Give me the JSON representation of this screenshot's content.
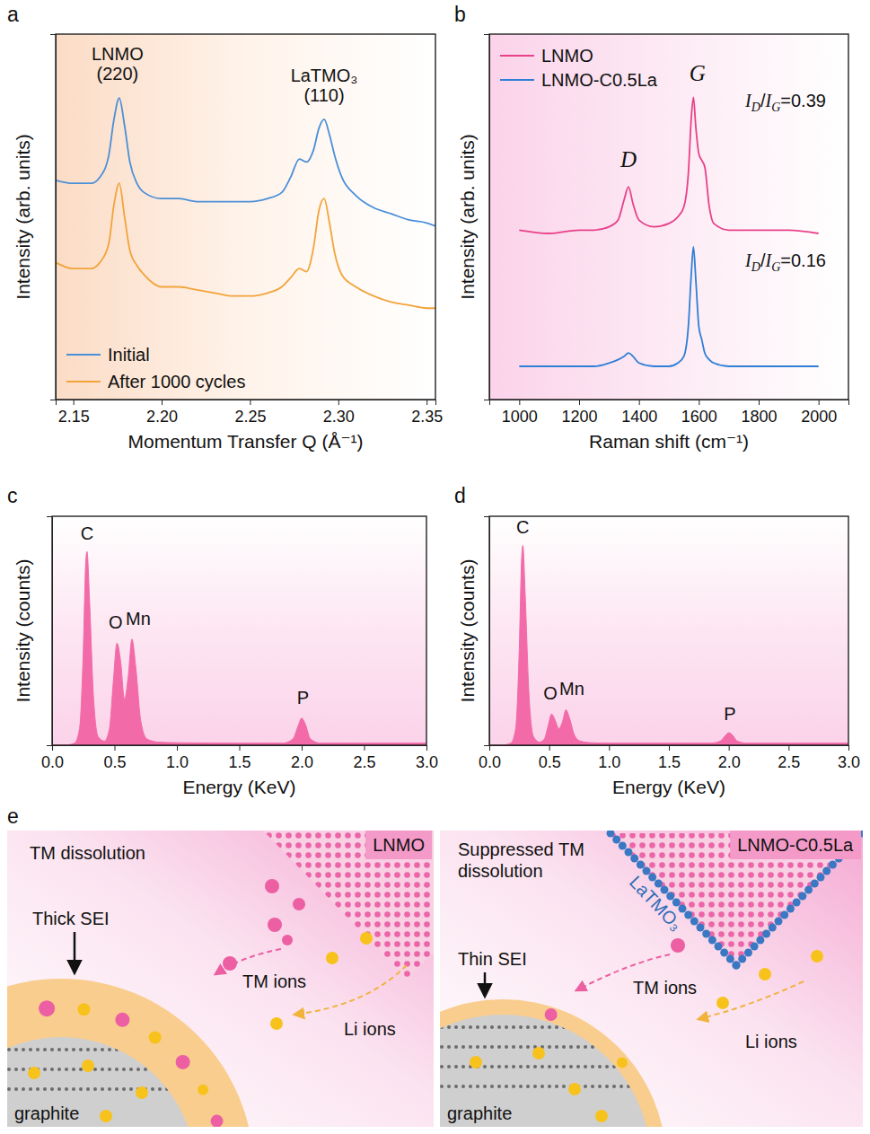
{
  "chart_data": [
    {
      "type": "line",
      "panel_label": "a",
      "x_label": "Momentum Transfer Q (Å⁻¹)",
      "y_label": "Intensity (arb. units)",
      "x": [
        2.14,
        2.15,
        2.16,
        2.165,
        2.17,
        2.173,
        2.176,
        2.179,
        2.182,
        2.186,
        2.19,
        2.2,
        2.21,
        2.22,
        2.23,
        2.24,
        2.25,
        2.26,
        2.268,
        2.273,
        2.278,
        2.282,
        2.286,
        2.289,
        2.292,
        2.295,
        2.298,
        2.302,
        2.31,
        2.32,
        2.33,
        2.34,
        2.35,
        2.355
      ],
      "series": [
        {
          "name": "Initial",
          "color": "#4a8fd8",
          "values": [
            52,
            51,
            51,
            53,
            60,
            72,
            79,
            70,
            58,
            51,
            48,
            46,
            46,
            45,
            45,
            45,
            45,
            46,
            48,
            53,
            59,
            58,
            62,
            69,
            72,
            67,
            60,
            53,
            47,
            43,
            41,
            39,
            38,
            37
          ]
        },
        {
          "name": "After 1000 cycles",
          "color": "#f2a43a",
          "values": [
            25,
            23,
            23,
            25,
            31,
            44,
            51,
            40,
            29,
            24,
            21,
            17,
            17,
            16,
            15,
            14,
            14,
            15,
            17,
            20,
            23,
            22,
            30,
            42,
            46,
            38,
            28,
            21,
            17,
            14,
            12,
            11,
            10,
            10
          ]
        }
      ],
      "xlim": [
        2.14,
        2.355
      ],
      "xticks": [
        2.15,
        {
          "value": 2.2,
          "label": "2.20"
        },
        2.25,
        {
          "value": 2.3,
          "label": "2.30"
        },
        2.35
      ],
      "ylim": [
        -20,
        100
      ],
      "yticks": [],
      "tick_labels": "x",
      "legend": "bottom-left",
      "annotations": [
        {
          "lines": [
            "LNMO",
            "(220)"
          ],
          "x": 2.175,
          "y": 85
        },
        {
          "lines": [
            "LaTMO₃",
            "(110)"
          ],
          "x": 2.292,
          "y": 78
        }
      ]
    },
    {
      "type": "line",
      "panel_label": "b",
      "x_label": "Raman shift (cm⁻¹)",
      "y_label": "Intensity (arb. units)",
      "x": [
        1000,
        1100,
        1200,
        1250,
        1300,
        1330,
        1350,
        1365,
        1380,
        1400,
        1450,
        1500,
        1530,
        1550,
        1565,
        1575,
        1582,
        1590,
        1600,
        1610,
        1620,
        1635,
        1650,
        1700,
        1800,
        1900,
        2000
      ],
      "series": [
        {
          "name": "LNMO",
          "color": "#e8418a",
          "values": [
            51,
            50,
            51,
            51,
            52,
            54,
            60,
            64,
            59,
            54,
            52,
            53,
            55,
            58,
            68,
            85,
            91,
            82,
            74,
            72,
            70,
            58,
            53,
            51,
            51,
            51,
            50
          ]
        },
        {
          "name": "LNMO-C0.5La",
          "color": "#2f7fd6",
          "values": [
            10,
            10,
            10,
            10,
            11,
            12,
            13,
            14,
            13,
            11,
            10,
            10,
            11,
            13,
            22,
            38,
            46,
            36,
            22,
            18,
            14,
            12,
            11,
            10,
            10,
            10,
            10
          ]
        }
      ],
      "xlim": [
        900,
        2100
      ],
      "xticks": [
        1000,
        1200,
        1400,
        1600,
        1800,
        2000
      ],
      "ylim": [
        0,
        110
      ],
      "yticks": [],
      "tick_labels": "x",
      "legend": "top-left",
      "annotations": [
        {
          "lines": [
            "D"
          ],
          "x": 1365,
          "y": 70
        },
        {
          "lines": [
            "G"
          ],
          "x": 1595,
          "y": 96
        },
        {
          "lines": [
            "ID/IG=0.39"
          ],
          "x": 1890,
          "y": 88
        },
        {
          "lines": [
            "ID/IG=0.16"
          ],
          "x": 1890,
          "y": 40
        }
      ]
    },
    {
      "type": "area",
      "panel_label": "c",
      "x_label": "Energy (KeV)",
      "y_label": "Intensity (counts)",
      "x": [
        0,
        0.1,
        0.18,
        0.22,
        0.25,
        0.27,
        0.28,
        0.3,
        0.33,
        0.37,
        0.42,
        0.46,
        0.49,
        0.52,
        0.55,
        0.58,
        0.61,
        0.64,
        0.67,
        0.71,
        0.76,
        0.85,
        1.0,
        1.5,
        1.85,
        1.93,
        1.97,
        2.0,
        2.03,
        2.07,
        2.15,
        2.5,
        3.0
      ],
      "series": [
        {
          "color": "#f36aa8",
          "values": [
            0,
            0,
            1,
            8,
            45,
            88,
            93,
            70,
            25,
            4,
            2,
            8,
            30,
            49,
            40,
            22,
            33,
            51,
            38,
            12,
            3,
            1.5,
            1.2,
            1,
            1,
            3,
            9,
            13,
            10,
            3,
            1,
            1,
            1
          ]
        }
      ],
      "xlim": [
        0,
        3
      ],
      "xticks": [
        {
          "value": 0,
          "label": "0.0"
        },
        0.5,
        {
          "value": 1,
          "label": "1.0"
        },
        1.5,
        {
          "value": 2,
          "label": "2.0"
        },
        2.5,
        {
          "value": 3,
          "label": "3.0"
        }
      ],
      "ylim": [
        0,
        110
      ],
      "yticks": [],
      "tick_labels": "x",
      "annotations": [
        {
          "lines": [
            "C"
          ],
          "x": 0.28,
          "y": 99
        },
        {
          "lines": [
            "O"
          ],
          "x": 0.51,
          "y": 56
        },
        {
          "lines": [
            "Mn"
          ],
          "x": 0.69,
          "y": 58
        },
        {
          "lines": [
            "P"
          ],
          "x": 2.01,
          "y": 20
        }
      ]
    },
    {
      "type": "area",
      "panel_label": "d",
      "x_label": "Energy (KeV)",
      "y_label": "Intensity (counts)",
      "x": [
        0,
        0.1,
        0.18,
        0.22,
        0.25,
        0.27,
        0.28,
        0.3,
        0.33,
        0.37,
        0.42,
        0.46,
        0.49,
        0.52,
        0.55,
        0.58,
        0.61,
        0.64,
        0.67,
        0.71,
        0.76,
        0.85,
        1.0,
        1.5,
        1.85,
        1.93,
        1.97,
        2.0,
        2.03,
        2.07,
        2.15,
        2.5,
        3.0
      ],
      "series": [
        {
          "color": "#f36aa8",
          "values": [
            0,
            0,
            1,
            8,
            46,
            90,
            96,
            72,
            26,
            4,
            1.5,
            3,
            9,
            15,
            12,
            8,
            11,
            17,
            13,
            5,
            2,
            1.2,
            1,
            1,
            1,
            2,
            4.5,
            6,
            5,
            2,
            1,
            1,
            1
          ]
        }
      ],
      "xlim": [
        0,
        3
      ],
      "xticks": [
        {
          "value": 0,
          "label": "0.0"
        },
        0.5,
        {
          "value": 1,
          "label": "1.0"
        },
        1.5,
        {
          "value": 2,
          "label": "2.0"
        },
        2.5,
        {
          "value": 3,
          "label": "3.0"
        }
      ],
      "ylim": [
        0,
        110
      ],
      "yticks": [],
      "tick_labels": "x",
      "annotations": [
        {
          "lines": [
            "C"
          ],
          "x": 0.28,
          "y": 102
        },
        {
          "lines": [
            "O"
          ],
          "x": 0.51,
          "y": 22
        },
        {
          "lines": [
            "Mn"
          ],
          "x": 0.69,
          "y": 24
        },
        {
          "lines": [
            "P"
          ],
          "x": 2.01,
          "y": 12
        }
      ]
    }
  ],
  "diagram": {
    "panel_label": "e",
    "left": {
      "corner_label": "LNMO",
      "heading": [
        "TM dissolution"
      ],
      "sei_label": "Thick SEI",
      "tm_label": "TM ions",
      "li_label": "Li ions",
      "graphite_label": "graphite"
    },
    "right": {
      "corner_label": "LNMO-C0.5La",
      "heading": [
        "Suppressed TM",
        "dissolution"
      ],
      "coating_label": "LaTMO₃",
      "sei_label": "Thin SEI",
      "tm_label": "TM ions",
      "li_label": "Li ions",
      "graphite_label": "graphite"
    }
  }
}
